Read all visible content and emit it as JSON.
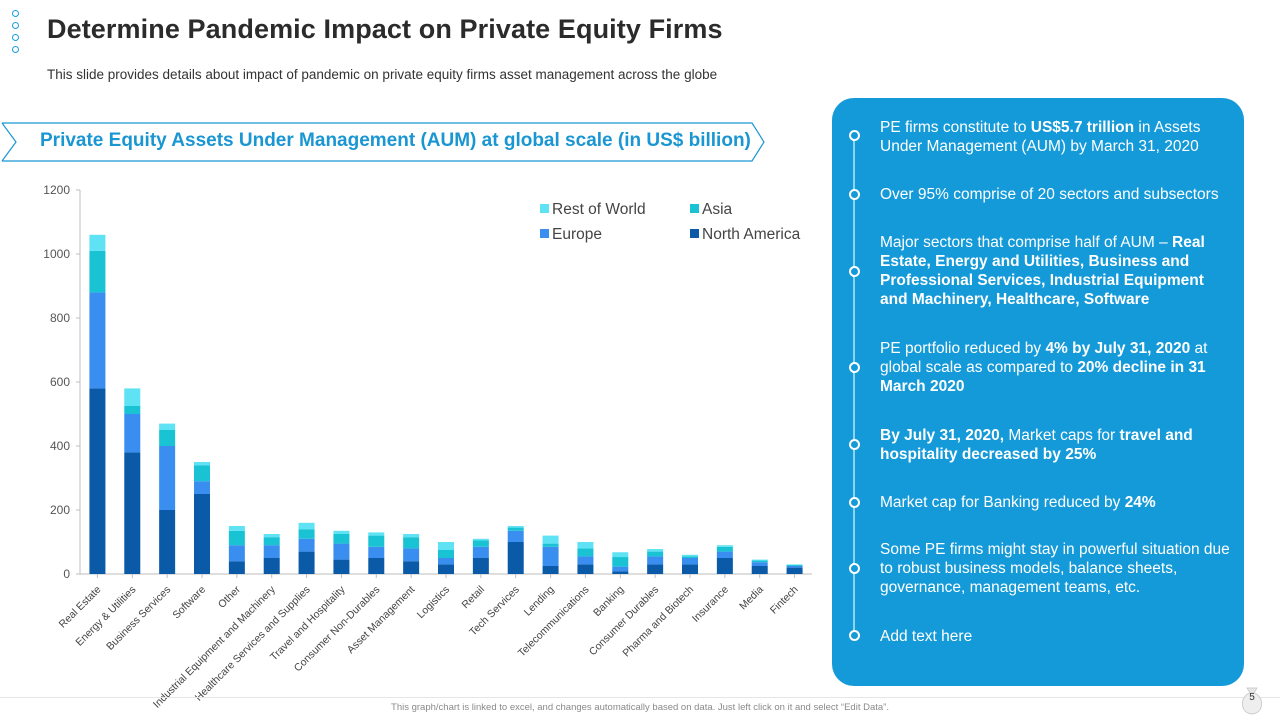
{
  "header": {
    "title": "Determine Pandemic Impact on Private Equity Firms",
    "subtitle": "This slide provides details about impact of pandemic on private equity firms asset management across the globe"
  },
  "banner": {
    "text": "Private Equity Assets Under Management (AUM) at global scale (in US$ billion)"
  },
  "colors": {
    "north_america": "#0a5aa8",
    "europe": "#3a8ef0",
    "asia": "#19c3d4",
    "rest_of_world": "#5fe2f4",
    "panel": "#149ad8",
    "accent": "#1a96d2"
  },
  "chart_data": {
    "type": "bar",
    "stacked": true,
    "title": "Private Equity Assets Under Management (AUM) at global scale (in US$ billion)",
    "xlabel": "",
    "ylabel": "",
    "ylim": [
      0,
      1200
    ],
    "yticks": [
      0,
      200,
      400,
      600,
      800,
      1000,
      1200
    ],
    "grid": false,
    "legend": {
      "placement": "top-right",
      "entries": [
        "Rest of World",
        "Asia",
        "Europe",
        "North America"
      ]
    },
    "categories": [
      "Real Estate",
      "Energy & Utilities",
      "Business Services",
      "Software",
      "Other",
      "Industrial Equipment and Machinery",
      "Healthcare Services and Supplies",
      "Travel and Hospitality",
      "Consumer Non-Durables",
      "Asset Management",
      "Logistics",
      "Retail",
      "Tech Services",
      "Lending",
      "Telecommunications",
      "Banking",
      "Consumer Durables",
      "Pharma and Biotech",
      "Insurance",
      "Media",
      "Fintech"
    ],
    "series": [
      {
        "name": "North America",
        "values": [
          580,
          380,
          200,
          250,
          40,
          50,
          70,
          45,
          50,
          40,
          30,
          50,
          100,
          25,
          30,
          8,
          30,
          30,
          50,
          25,
          20
        ]
      },
      {
        "name": "Europe",
        "values": [
          300,
          120,
          200,
          40,
          50,
          40,
          40,
          50,
          35,
          40,
          20,
          35,
          35,
          60,
          25,
          15,
          25,
          20,
          20,
          12,
          5
        ]
      },
      {
        "name": "Asia",
        "values": [
          130,
          25,
          50,
          50,
          45,
          25,
          30,
          30,
          35,
          35,
          25,
          20,
          10,
          10,
          25,
          30,
          15,
          5,
          15,
          5,
          3
        ]
      },
      {
        "name": "Rest of World",
        "values": [
          50,
          55,
          20,
          10,
          15,
          10,
          20,
          10,
          10,
          10,
          25,
          5,
          5,
          25,
          20,
          15,
          8,
          5,
          5,
          3,
          2
        ]
      }
    ]
  },
  "panel": {
    "points": [
      [
        {
          "t": "PE firms constitute to ",
          "b": false
        },
        {
          "t": "US$5.7 trillion",
          "b": true
        },
        {
          "t": " in Assets Under Management (AUM) by March 31, 2020",
          "b": false
        }
      ],
      [
        {
          "t": "Over 95% comprise of 20 sectors and subsectors",
          "b": false
        }
      ],
      [
        {
          "t": "Major sectors that comprise half of AUM – ",
          "b": false
        },
        {
          "t": "Real Estate, Energy and Utilities, Business and Professional Services, Industrial Equipment and Machinery, Healthcare, Software",
          "b": true
        }
      ],
      [
        {
          "t": "PE portfolio reduced by ",
          "b": false
        },
        {
          "t": "4% by July 31, 2020",
          "b": true
        },
        {
          "t": " at global scale as compared to ",
          "b": false
        },
        {
          "t": "20% decline in 31 March 2020",
          "b": true
        }
      ],
      [
        {
          "t": "By July 31, 2020,",
          "b": true
        },
        {
          "t": " Market caps for ",
          "b": false
        },
        {
          "t": "travel and hospitality decreased by 25%",
          "b": true
        }
      ],
      [
        {
          "t": "Market cap for Banking reduced by ",
          "b": false
        },
        {
          "t": "24%",
          "b": true
        }
      ],
      [
        {
          "t": "Some PE firms might stay in powerful situation due to robust business models, balance sheets, governance, management teams, etc.",
          "b": false
        }
      ],
      [
        {
          "t": "Add text here",
          "b": false
        }
      ]
    ]
  },
  "footer": {
    "note": "This graph/chart is linked to excel, and changes automatically based on data. Just left click on it and select “Edit Data”.",
    "page_number": "5"
  }
}
